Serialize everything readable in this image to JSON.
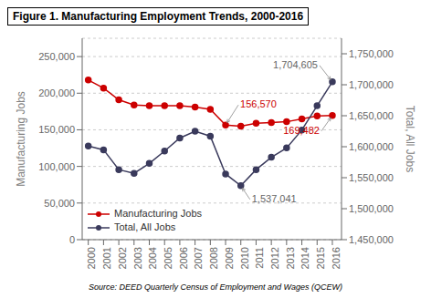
{
  "chart_data": {
    "type": "line",
    "title": "Figure 1. Manufacturing Employment Trends, 2000-2016",
    "x": [
      2000,
      2001,
      2002,
      2003,
      2004,
      2005,
      2006,
      2007,
      2008,
      2009,
      2010,
      2011,
      2012,
      2013,
      2014,
      2015,
      2016
    ],
    "xlim": [
      1999.6,
      2016.6
    ],
    "xticks": [
      2000,
      2001,
      2002,
      2003,
      2004,
      2005,
      2006,
      2007,
      2008,
      2009,
      2010,
      2011,
      2012,
      2013,
      2014,
      2015,
      2016
    ],
    "ylabel": "Manufacturing Jobs",
    "y2label": "Total, All Jobs",
    "ylim": [
      0,
      275000
    ],
    "yticks": [
      0,
      {
        "value": 50000,
        "label": "50,000"
      },
      {
        "value": 100000,
        "label": "100,000"
      },
      {
        "value": 150000,
        "label": "150,000"
      },
      {
        "value": 200000,
        "label": "200,000"
      },
      {
        "value": 250000,
        "label": "250,000"
      }
    ],
    "y2lim": [
      1450000,
      1775000
    ],
    "y2ticks": [
      {
        "value": 1450000,
        "label": "1,450,000"
      },
      {
        "value": 1500000,
        "label": "1,500,000"
      },
      {
        "value": 1550000,
        "label": "1,550,000"
      },
      {
        "value": 1600000,
        "label": "1,600,000"
      },
      {
        "value": 1650000,
        "label": "1,650,000"
      },
      {
        "value": 1700000,
        "label": "1,700,000"
      },
      {
        "value": 1750000,
        "label": "1,750,000"
      }
    ],
    "series": [
      {
        "name": "Manufacturing Jobs",
        "color": "#cc0000",
        "marker": "circle",
        "values": [
          218000,
          207000,
          191000,
          184000,
          183000,
          183000,
          183000,
          181000,
          178000,
          156570,
          155000,
          159000,
          160000,
          161000,
          165000,
          169000,
          169482
        ]
      },
      {
        "name": "Total, All Jobs",
        "color": "#3a3a5c",
        "marker": "circle",
        "axis": "y2",
        "values": [
          1601000,
          1595000,
          1563000,
          1557000,
          1573000,
          1593000,
          1614000,
          1625000,
          1617000,
          1556000,
          1537041,
          1563000,
          1583000,
          1598000,
          1627000,
          1666000,
          1704605
        ]
      }
    ],
    "grid": "y",
    "legend": "lower left",
    "annotations": [
      {
        "text": "156,570",
        "x": 2009,
        "y": 156570,
        "color": "#cc0000"
      },
      {
        "text": "169,482",
        "x": 2016,
        "y": 169482,
        "color": "#cc0000"
      },
      {
        "text": "1,537,041",
        "x": 2010,
        "y": 1537041,
        "axis": "y2",
        "color": "#666666"
      },
      {
        "text": "1,704,605",
        "x": 2016,
        "y": 1704605,
        "axis": "y2",
        "color": "#666666"
      }
    ],
    "source": "Source: DEED Quarterly Census of Employment and Wages (QCEW)"
  }
}
